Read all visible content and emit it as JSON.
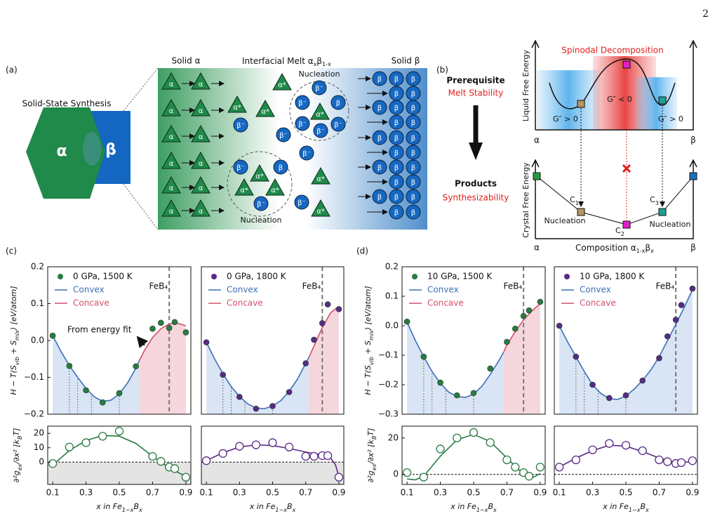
{
  "page_number": "2",
  "panel_a": {
    "label": "(a)",
    "synthesis": "Solid-State Synthesis",
    "alpha": "α",
    "beta": "β",
    "solid_alpha": "Solid α",
    "melt_title": [
      "Interfacial Melt α",
      "x",
      "β",
      "1-x"
    ],
    "solid_beta": "Solid β",
    "nucleation_1": "Nucleation",
    "nucleation_2": "Nucleation",
    "alpha_star": "α*",
    "beta_minus": "β⁻"
  },
  "panel_b": {
    "label": "(b)",
    "prerequisite": "Prerequisite",
    "melt_stability": "Melt Stability",
    "products": "Products",
    "synthesizability": "Synthesizability",
    "spinodal": "Spinodal Decomposition",
    "liquid_axis": "Liquid Free Energy",
    "g_pos_1": "G″ > 0",
    "g_neg": "G″ < 0",
    "g_pos_2": "G″ > 0",
    "alpha_top": "α",
    "beta_top": "β",
    "crystal_axis": "Crystal Free Energy",
    "c1": [
      "C",
      "1"
    ],
    "c2": [
      "C",
      "2"
    ],
    "c3": [
      "C",
      "3"
    ],
    "nucleation_1": "Nucleation",
    "nucleation_2": "Nucleation",
    "alpha_bottom": "α",
    "composition": [
      "Composition α",
      "1-x",
      "β",
      "x"
    ],
    "beta_bottom": "β"
  },
  "panel_c_label": "(c)",
  "panel_d_label": "(d)",
  "chart_data": [
    {
      "type": "line",
      "xlim": [
        0.07,
        0.93
      ],
      "ylim": [
        -0.2,
        0.2
      ],
      "yticks": [
        {
          "value": -0.2,
          "label": "−0.2"
        },
        {
          "value": -0.1,
          "label": "−0.1"
        },
        {
          "value": 0,
          "label": "0.0"
        },
        0.1,
        0.2
      ],
      "ylabel": [
        "H − T(S",
        "vib",
        " + S",
        "mix",
        ") [eV/atom]"
      ],
      "vline": {
        "x": 0.8,
        "label": "FeB₄"
      },
      "guides_x": [
        0.2,
        0.25,
        0.333,
        0.5
      ],
      "annotation": "From energy fit",
      "series": [
        {
          "name": "0 GPa, 1500 K",
          "color": "#2a7a42",
          "marker": "filled",
          "x": [
            0.1,
            0.2,
            0.3,
            0.4,
            0.5,
            0.6,
            0.7,
            0.75,
            0.8,
            0.833,
            0.9
          ],
          "values": [
            0.013,
            -0.069,
            -0.135,
            -0.168,
            -0.143,
            -0.07,
            0.032,
            0.048,
            0.034,
            0.05,
            0.022
          ]
        },
        {
          "name": "Convex",
          "color": "#3b6fb6",
          "fill": "#d9e5f5",
          "x": [
            0.1,
            0.15,
            0.2,
            0.25,
            0.3,
            0.35,
            0.4,
            0.45,
            0.5,
            0.55,
            0.6,
            0.62
          ],
          "values": [
            0.013,
            -0.03,
            -0.068,
            -0.1,
            -0.13,
            -0.153,
            -0.165,
            -0.162,
            -0.145,
            -0.115,
            -0.075,
            -0.055
          ]
        },
        {
          "name": "Concave",
          "color": "#d2506a",
          "fill": "#f6d6dd",
          "x": [
            0.62,
            0.65,
            0.7,
            0.75,
            0.8,
            0.85,
            0.9
          ],
          "values": [
            -0.055,
            -0.028,
            0.008,
            0.032,
            0.045,
            0.047,
            0.04
          ]
        }
      ]
    },
    {
      "type": "line",
      "xlim": [
        0.07,
        0.93
      ],
      "ylim": [
        -15.5,
        25
      ],
      "yticks": [
        0,
        10,
        20
      ],
      "xticks": [
        0.1,
        0.3,
        0.5,
        0.7,
        0.9
      ],
      "ylabel": [
        "∂²g",
        "ex",
        "/∂x² [k",
        "B",
        "T]"
      ],
      "xlabel": [
        "x in Fe",
        "1−x",
        "B",
        "x"
      ],
      "zero_line": true,
      "shade_below_zero": "#e4e4e4",
      "series": [
        {
          "color": "#2a7a42",
          "marker": "open",
          "x": [
            0.1,
            0.2,
            0.3,
            0.4,
            0.5,
            0.7,
            0.75,
            0.8,
            0.833,
            0.9
          ],
          "values": [
            -1,
            10.5,
            13.5,
            18,
            21.5,
            4,
            0.5,
            -3.5,
            -4.5,
            -10.5
          ]
        },
        {
          "color": "#2a7a42",
          "x": [
            0.1,
            0.2,
            0.3,
            0.4,
            0.5,
            0.6,
            0.7,
            0.8,
            0.85,
            0.9
          ],
          "values": [
            -2,
            8,
            15,
            18.5,
            18,
            13,
            4,
            -4,
            -7,
            -10
          ]
        }
      ]
    },
    {
      "type": "line",
      "xlim": [
        0.07,
        0.93
      ],
      "ylim": [
        -0.2,
        0.2
      ],
      "vline": {
        "x": 0.8,
        "label": "FeB₄"
      },
      "guides_x": [
        0.2,
        0.25,
        0.333,
        0.5
      ],
      "series": [
        {
          "name": "0 GPa, 1800 K",
          "color": "#5a2a86",
          "marker": "filled",
          "x": [
            0.1,
            0.2,
            0.3,
            0.4,
            0.5,
            0.6,
            0.7,
            0.75,
            0.8,
            0.833,
            0.9
          ],
          "values": [
            -0.005,
            -0.093,
            -0.153,
            -0.185,
            -0.178,
            -0.14,
            -0.062,
            0.002,
            0.047,
            0.098,
            0.085
          ]
        },
        {
          "name": "Convex",
          "color": "#3b6fb6",
          "fill": "#d9e5f5",
          "x": [
            0.1,
            0.15,
            0.2,
            0.25,
            0.3,
            0.35,
            0.4,
            0.45,
            0.5,
            0.55,
            0.6,
            0.65,
            0.72
          ],
          "values": [
            -0.005,
            -0.05,
            -0.09,
            -0.125,
            -0.152,
            -0.172,
            -0.183,
            -0.185,
            -0.178,
            -0.163,
            -0.138,
            -0.105,
            -0.045
          ]
        },
        {
          "name": "Concave",
          "color": "#d2506a",
          "fill": "#f6d6dd",
          "x": [
            0.72,
            0.75,
            0.8,
            0.85,
            0.9
          ],
          "values": [
            -0.045,
            -0.015,
            0.035,
            0.075,
            0.093
          ]
        }
      ]
    },
    {
      "type": "line",
      "xlim": [
        0.07,
        0.93
      ],
      "ylim": [
        -15.5,
        25
      ],
      "xticks": [
        0.1,
        0.3,
        0.5,
        0.7,
        0.9
      ],
      "xlabel": [
        "x in Fe",
        "1−x",
        "B",
        "x"
      ],
      "zero_line": true,
      "shade_below_zero": "#e4e4e4",
      "series": [
        {
          "color": "#5a2a86",
          "marker": "open",
          "x": [
            0.1,
            0.2,
            0.3,
            0.4,
            0.5,
            0.6,
            0.7,
            0.75,
            0.8,
            0.833,
            0.9
          ],
          "values": [
            1,
            6,
            11,
            12,
            13.5,
            10.5,
            4,
            4,
            4.5,
            4.5,
            -10.5
          ]
        },
        {
          "color": "#5a2a86",
          "x": [
            0.1,
            0.2,
            0.3,
            0.4,
            0.5,
            0.6,
            0.7,
            0.8,
            0.85,
            0.88,
            0.9
          ],
          "values": [
            1,
            6.5,
            10.5,
            12,
            11.5,
            9.5,
            7,
            5,
            3,
            -2,
            -10
          ]
        }
      ]
    },
    {
      "type": "line",
      "xlim": [
        0.07,
        0.93
      ],
      "ylim": [
        -0.3,
        0.2
      ],
      "yticks": [
        {
          "value": -0.3,
          "label": "−0.3"
        },
        {
          "value": -0.2,
          "label": "−0.2"
        },
        {
          "value": -0.1,
          "label": "−0.1"
        },
        {
          "value": 0,
          "label": "0.0"
        },
        0.1,
        0.2
      ],
      "ylabel": [
        "H − T(S",
        "vib",
        " + S",
        "mix",
        ") [eV/atom]"
      ],
      "vline": {
        "x": 0.8,
        "label": "FeB₄"
      },
      "guides_x": [
        0.2,
        0.25,
        0.333,
        0.5
      ],
      "series": [
        {
          "name": "10 GPa, 1500 K",
          "color": "#2a7a42",
          "marker": "filled",
          "x": [
            0.1,
            0.2,
            0.3,
            0.4,
            0.5,
            0.6,
            0.7,
            0.75,
            0.8,
            0.833,
            0.9
          ],
          "values": [
            0.014,
            -0.105,
            -0.193,
            -0.236,
            -0.228,
            -0.145,
            -0.055,
            -0.01,
            0.033,
            0.052,
            0.081
          ]
        },
        {
          "name": "Convex",
          "color": "#3b6fb6",
          "fill": "#d9e5f5",
          "x": [
            0.1,
            0.15,
            0.2,
            0.25,
            0.3,
            0.35,
            0.4,
            0.45,
            0.5,
            0.55,
            0.6,
            0.65,
            0.68
          ],
          "values": [
            0.012,
            -0.05,
            -0.105,
            -0.155,
            -0.195,
            -0.225,
            -0.24,
            -0.243,
            -0.232,
            -0.205,
            -0.165,
            -0.12,
            -0.09
          ]
        },
        {
          "name": "Concave",
          "color": "#d2506a",
          "fill": "#f6d6dd",
          "x": [
            0.68,
            0.7,
            0.75,
            0.8,
            0.85,
            0.9
          ],
          "values": [
            -0.09,
            -0.065,
            -0.02,
            0.02,
            0.05,
            0.075
          ]
        }
      ]
    },
    {
      "type": "line",
      "xlim": [
        0.07,
        0.93
      ],
      "ylim": [
        -5.5,
        26.5
      ],
      "yticks": [
        0,
        20
      ],
      "xticks": [
        0.1,
        0.3,
        0.5,
        0.7,
        0.9
      ],
      "ylabel": [
        "∂²g",
        "ex",
        "/∂x² [k",
        "B",
        "T]"
      ],
      "xlabel": [
        "x in Fe",
        "1−x",
        "B",
        "x"
      ],
      "zero_line": true,
      "series": [
        {
          "color": "#2a7a42",
          "marker": "open",
          "x": [
            0.1,
            0.2,
            0.3,
            0.4,
            0.5,
            0.6,
            0.7,
            0.75,
            0.8,
            0.833,
            0.9
          ],
          "values": [
            1,
            -1.5,
            14,
            20,
            23,
            17.5,
            8,
            4,
            1,
            -1,
            4
          ]
        },
        {
          "color": "#2a7a42",
          "x": [
            0.1,
            0.15,
            0.2,
            0.3,
            0.4,
            0.5,
            0.6,
            0.7,
            0.8,
            0.85,
            0.9
          ],
          "values": [
            -2.5,
            -3,
            -1,
            10,
            19,
            22,
            18,
            9,
            0,
            -2,
            0.5
          ]
        }
      ]
    },
    {
      "type": "line",
      "xlim": [
        0.07,
        0.93
      ],
      "ylim": [
        -0.3,
        0.2
      ],
      "vline": {
        "x": 0.8,
        "label": "FeB₄"
      },
      "guides_x": [
        0.2,
        0.25,
        0.333,
        0.5
      ],
      "series": [
        {
          "name": "10 GPa, 1800 K",
          "color": "#5a2a86",
          "marker": "filled",
          "x": [
            0.1,
            0.2,
            0.3,
            0.4,
            0.5,
            0.6,
            0.7,
            0.75,
            0.8,
            0.833,
            0.9
          ],
          "values": [
            0.0,
            -0.105,
            -0.2,
            -0.245,
            -0.236,
            -0.186,
            -0.11,
            -0.036,
            0.02,
            0.07,
            0.126
          ]
        },
        {
          "name": "Convex",
          "color": "#3b6fb6",
          "fill": "#d9e5f5",
          "x": [
            0.1,
            0.15,
            0.2,
            0.25,
            0.3,
            0.35,
            0.4,
            0.45,
            0.5,
            0.55,
            0.6,
            0.65,
            0.7,
            0.75,
            0.8,
            0.85,
            0.9
          ],
          "values": [
            0.0,
            -0.055,
            -0.105,
            -0.155,
            -0.2,
            -0.23,
            -0.247,
            -0.25,
            -0.238,
            -0.215,
            -0.185,
            -0.15,
            -0.105,
            -0.05,
            0.005,
            0.062,
            0.122
          ]
        },
        {
          "name": "Concave",
          "color": "#d2506a",
          "fill": "#f6d6dd",
          "x": [],
          "values": []
        }
      ]
    },
    {
      "type": "line",
      "xlim": [
        0.07,
        0.93
      ],
      "ylim": [
        -5.5,
        26.5
      ],
      "xticks": [
        0.1,
        0.3,
        0.5,
        0.7,
        0.9
      ],
      "xlabel": [
        "x in Fe",
        "1−x",
        "B",
        "x"
      ],
      "zero_line": true,
      "series": [
        {
          "color": "#5a2a86",
          "marker": "open",
          "x": [
            0.1,
            0.2,
            0.3,
            0.4,
            0.5,
            0.6,
            0.7,
            0.75,
            0.8,
            0.833,
            0.9
          ],
          "values": [
            4,
            8,
            13.5,
            17,
            16,
            13,
            8,
            7,
            6,
            6.5,
            7.5
          ]
        },
        {
          "color": "#5a2a86",
          "x": [
            0.1,
            0.2,
            0.3,
            0.4,
            0.5,
            0.6,
            0.7,
            0.8,
            0.9
          ],
          "values": [
            4,
            9,
            13,
            16,
            15.5,
            12.5,
            9,
            6.5,
            7
          ]
        }
      ]
    }
  ]
}
